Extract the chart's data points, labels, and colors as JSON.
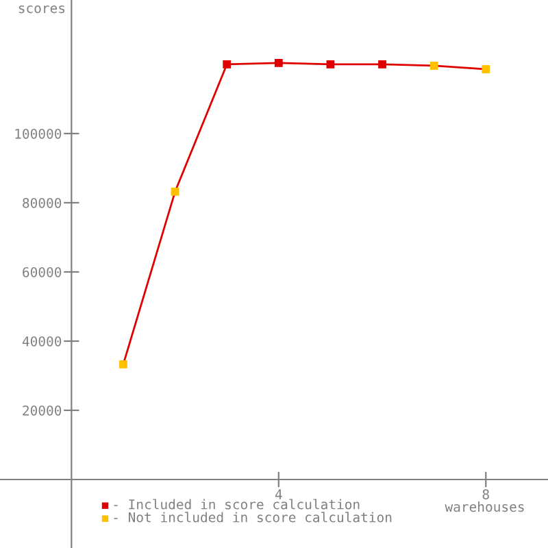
{
  "chart_data": {
    "type": "line",
    "xlabel": "warehouses",
    "ylabel": "scores",
    "x": [
      1,
      2,
      3,
      4,
      5,
      6,
      7,
      8
    ],
    "series": [
      {
        "color": "#e00000",
        "marker": "none",
        "values": [
          33300,
          83200,
          120000,
          120400,
          120000,
          120000,
          119600,
          118600
        ]
      },
      {
        "type": "scatter",
        "name": "- Included in score calculation",
        "color": "#e00000",
        "marker": "square",
        "values": [
          null,
          null,
          120000,
          120400,
          120000,
          120000,
          null,
          null
        ]
      },
      {
        "type": "scatter",
        "name": "- Not included in score calculation",
        "color": "#ffc000",
        "marker": "square",
        "values": [
          33300,
          83200,
          null,
          null,
          null,
          null,
          119600,
          118600
        ]
      }
    ],
    "xlim": [
      -1.38,
      9.2
    ],
    "ylim": [
      -19800,
      138600
    ],
    "xticks": [
      4,
      8
    ],
    "yticks": [
      20000,
      40000,
      60000,
      80000,
      100000
    ],
    "grid": false,
    "legend": "bottom left"
  }
}
